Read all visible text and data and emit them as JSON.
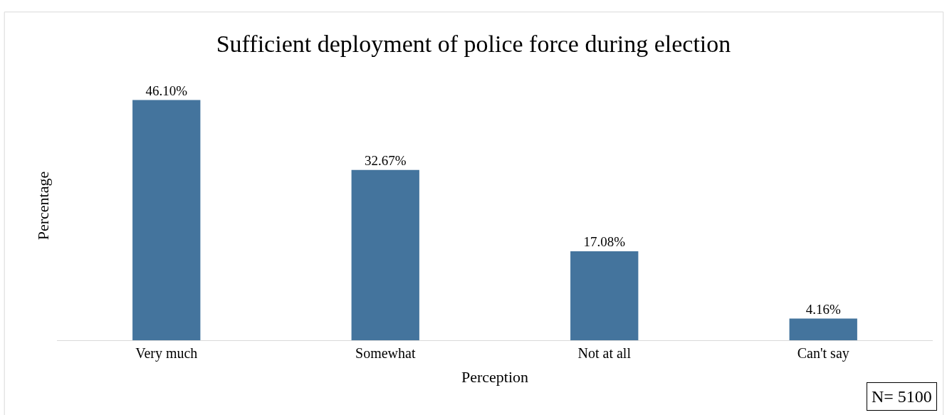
{
  "chart_data": {
    "type": "bar",
    "title": "Sufficient deployment of police force during election",
    "xlabel": "Perception",
    "ylabel": "Percentage",
    "categories": [
      "Very much",
      "Somewhat",
      "Not at all",
      "Can't say"
    ],
    "values": [
      46.1,
      32.67,
      17.08,
      4.16
    ],
    "value_labels": [
      "46.10%",
      "32.67%",
      "17.08%",
      "4.16%"
    ],
    "color": "#44749d",
    "annotations": [
      "N= 5100"
    ]
  }
}
